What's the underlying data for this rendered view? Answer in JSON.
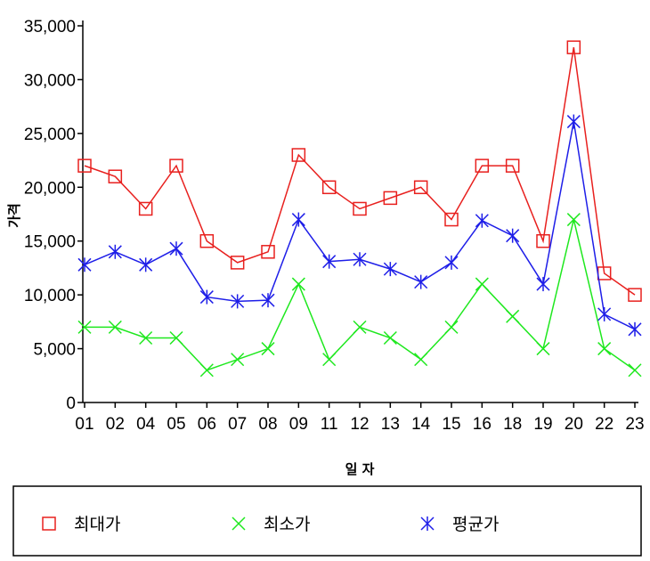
{
  "chart_data": {
    "type": "line",
    "title": "",
    "xlabel": "일 자",
    "ylabel": "가격",
    "categories": [
      "01",
      "02",
      "04",
      "05",
      "06",
      "07",
      "08",
      "09",
      "11",
      "12",
      "13",
      "14",
      "15",
      "16",
      "18",
      "19",
      "20",
      "22",
      "23"
    ],
    "ylim": [
      0,
      35000
    ],
    "yticks": [
      0,
      5000,
      10000,
      15000,
      20000,
      25000,
      30000,
      35000
    ],
    "ytick_labels": [
      "0",
      "5,000",
      "10,000",
      "15,000",
      "20,000",
      "25,000",
      "30,000",
      "35,000"
    ],
    "grid": false,
    "legend_position": "bottom",
    "series": [
      {
        "name": "최대가",
        "color": "#e8201e",
        "marker": "square",
        "values": [
          22000,
          21000,
          18000,
          22000,
          15000,
          13000,
          14000,
          23000,
          20000,
          18000,
          19000,
          20000,
          17000,
          22000,
          22000,
          15000,
          33000,
          12000,
          10000
        ]
      },
      {
        "name": "최소가",
        "color": "#1ee81e",
        "marker": "x",
        "values": [
          7000,
          7000,
          6000,
          6000,
          3000,
          4000,
          5000,
          11000,
          4000,
          7000,
          6000,
          4000,
          7000,
          11000,
          8000,
          5000,
          17000,
          5000,
          3000
        ]
      },
      {
        "name": "평균가",
        "color": "#1e1ee8",
        "marker": "asterisk",
        "values": [
          12800,
          14000,
          12800,
          14300,
          9800,
          9400,
          9500,
          17000,
          13100,
          13300,
          12400,
          11200,
          13000,
          16900,
          15500,
          11000,
          26100,
          8200,
          6800
        ]
      }
    ]
  }
}
